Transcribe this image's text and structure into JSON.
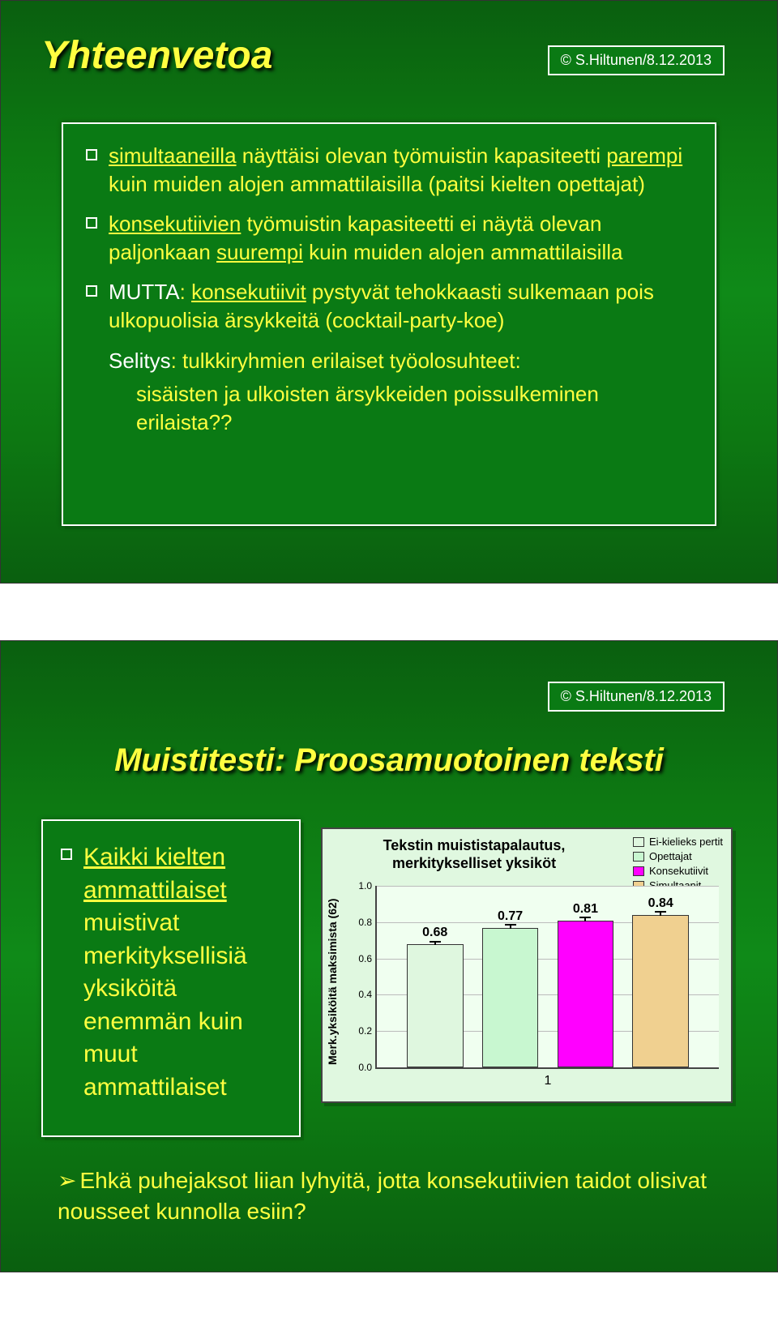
{
  "copyright": "© S.Hiltunen/8.12.2013",
  "slide1": {
    "title": "Yhteenvetoa",
    "bullets": [
      {
        "pre_u": "simultaaneilla",
        "after_u": " näyttäisi olevan työmuistin kapasiteetti ",
        "pre_u2": "parempi",
        "after_u2": " kuin muiden alojen ammattilaisilla (paitsi kielten opettajat)"
      },
      {
        "pre_u": "konsekutiivien",
        "after_u": " työmuistin kapasiteetti ei näytä olevan paljonkaan ",
        "pre_u2": "suurempi",
        "after_u2": " kuin muiden alojen ammattilaisilla"
      },
      {
        "white": "MUTTA",
        "after_white": ": ",
        "pre_u": "konsekutiivit",
        "after_u": " pystyvät tehokkaasti sulkemaan pois ulkopuolisia ärsykkeitä (cocktail-party-koe)"
      }
    ],
    "selitys_label": "Selitys",
    "selitys_rest": ": tulkkiryhmien erilaiset työolosuhteet:",
    "sub": "sisäisten ja ulkoisten ärsykkeiden poissulkeminen erilaista??"
  },
  "slide2": {
    "title": "Muistitesti: Proosamuotoinen teksti",
    "left_bullet": {
      "u1": "Kaikki kielten ammattilaiset",
      "rest": " muistivat merkityksellisiä yksiköitä enemmän kuin muut ammattilaiset"
    },
    "chart": {
      "title_l1": "Tekstin muististapalautus,",
      "title_l2": "merkitykselliset yksiköt",
      "ylabel": "Merk.yksiköitä maksimista (62)",
      "legend": [
        {
          "label": "Ei-kielieks pertit",
          "color": "#dff7df"
        },
        {
          "label": "Opettajat",
          "color": "#c8f7d0"
        },
        {
          "label": "Konsekutiivit",
          "color": "#ff00ff"
        },
        {
          "label": "Simultaanit",
          "color": "#f0d090"
        }
      ],
      "ymax": 1.0,
      "yticks": [
        "0.0",
        "0.2",
        "0.4",
        "0.6",
        "0.8",
        "1.0"
      ],
      "bars": [
        {
          "label": "0.68",
          "value": 0.68,
          "color": "#dff7df"
        },
        {
          "label": "0.77",
          "value": 0.77,
          "color": "#c8f7d0"
        },
        {
          "label": "0.81",
          "value": 0.81,
          "color": "#ff00ff"
        },
        {
          "label": "0.84",
          "value": 0.84,
          "color": "#f0d090"
        }
      ],
      "xcat": "1",
      "err": 0.03
    },
    "bottom": {
      "arrow": "➢",
      "text": "Ehkä puhejaksot liian lyhyitä, jotta konsekutiivien taidot olisivat nousseet kunnolla esiin?"
    }
  }
}
